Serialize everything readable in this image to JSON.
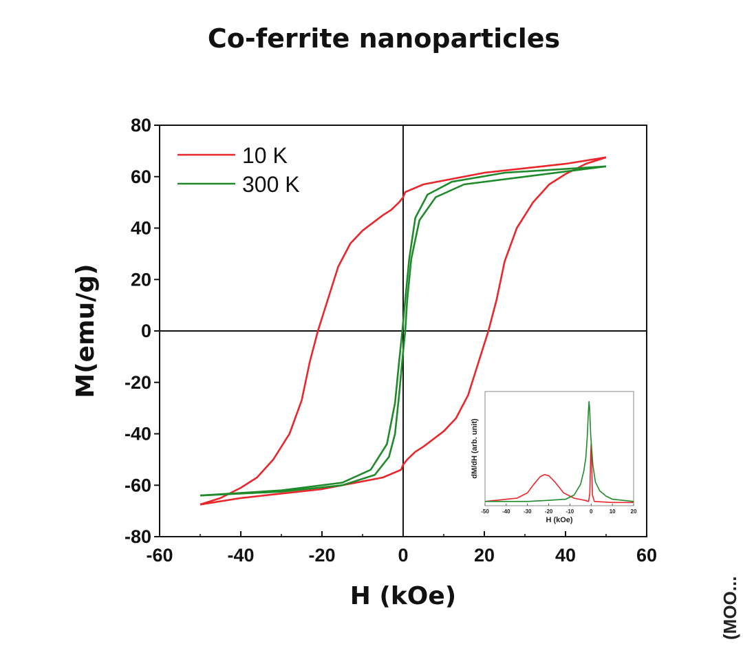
{
  "title": "Co-ferrite nanoparticles",
  "colors": {
    "10K": "#e8262b",
    "300K": "#1f8a2a",
    "axis": "#111111"
  },
  "chart_data": [
    {
      "type": "line",
      "title": "Co-ferrite nanoparticles",
      "xlabel": "H (kOe)",
      "ylabel": "M(emu/g)",
      "xlim": [
        -60,
        60
      ],
      "ylim": [
        -80,
        80
      ],
      "x_ticks": [
        "-60",
        "-40",
        "-20",
        "0",
        "20",
        "40",
        "60"
      ],
      "y_ticks": [
        "80",
        "60",
        "40",
        "20",
        "0",
        "-20",
        "-40",
        "-60",
        "-80"
      ],
      "legend_position": "top-left",
      "series": [
        {
          "name": "10 K",
          "color": "#e8262b",
          "descending": [
            [
              50,
              67.5
            ],
            [
              40,
              65
            ],
            [
              20,
              61.5
            ],
            [
              5,
              57
            ],
            [
              0.5,
              54
            ],
            [
              0,
              52
            ],
            [
              -1,
              50
            ],
            [
              -3,
              47
            ],
            [
              -5,
              45
            ],
            [
              -10,
              39
            ],
            [
              -13,
              34
            ],
            [
              -16,
              25
            ],
            [
              -19,
              10
            ],
            [
              -21,
              0
            ],
            [
              -23,
              -12
            ],
            [
              -25,
              -27
            ],
            [
              -28,
              -40
            ],
            [
              -32,
              -50
            ],
            [
              -36,
              -57
            ],
            [
              -40,
              -61
            ],
            [
              -45,
              -65
            ],
            [
              -50,
              -67.5
            ]
          ],
          "ascending": [
            [
              -50,
              -67.5
            ],
            [
              -40,
              -65
            ],
            [
              -20,
              -61.5
            ],
            [
              -5,
              -57
            ],
            [
              -0.5,
              -54
            ],
            [
              0,
              -52
            ],
            [
              1,
              -50
            ],
            [
              3,
              -47
            ],
            [
              5,
              -45
            ],
            [
              10,
              -39
            ],
            [
              13,
              -34
            ],
            [
              16,
              -25
            ],
            [
              19,
              -10
            ],
            [
              21,
              0
            ],
            [
              23,
              12
            ],
            [
              25,
              27
            ],
            [
              28,
              40
            ],
            [
              32,
              50
            ],
            [
              36,
              57
            ],
            [
              40,
              61
            ],
            [
              45,
              65
            ],
            [
              50,
              67.5
            ]
          ]
        },
        {
          "name": "300 K",
          "color": "#1f8a2a",
          "descending": [
            [
              50,
              64
            ],
            [
              30,
              60
            ],
            [
              15,
              57
            ],
            [
              8,
              52
            ],
            [
              4,
              43
            ],
            [
              2,
              28
            ],
            [
              1,
              12
            ],
            [
              0.5,
              0
            ],
            [
              0,
              -8
            ],
            [
              -1,
              -25
            ],
            [
              -2,
              -40
            ],
            [
              -3.5,
              -49
            ],
            [
              -7,
              -56
            ],
            [
              -15,
              -60
            ],
            [
              -30,
              -62.5
            ],
            [
              -50,
              -64
            ]
          ],
          "ascending": [
            [
              -50,
              -64
            ],
            [
              -30,
              -62
            ],
            [
              -15,
              -59
            ],
            [
              -8,
              -54
            ],
            [
              -4,
              -44
            ],
            [
              -2,
              -28
            ],
            [
              -1,
              -12
            ],
            [
              -0.2,
              0
            ],
            [
              0.5,
              12
            ],
            [
              1.5,
              28
            ],
            [
              3,
              44
            ],
            [
              6,
              53
            ],
            [
              12,
              58
            ],
            [
              25,
              61.5
            ],
            [
              50,
              64
            ]
          ]
        }
      ]
    },
    {
      "type": "line",
      "title": "",
      "xlabel": "H (kOe)",
      "ylabel": "dM/dH (arb. unit)",
      "xlim": [
        -50,
        20
      ],
      "ylim": [
        0,
        1
      ],
      "x_ticks": [
        "-50",
        "-40",
        "-30",
        "-20",
        "-10",
        "0",
        "10",
        "20"
      ],
      "series": [
        {
          "name": "10 K",
          "color": "#e8262b",
          "points": [
            [
              -50,
              0.04
            ],
            [
              -35,
              0.07
            ],
            [
              -30,
              0.12
            ],
            [
              -27,
              0.2
            ],
            [
              -24,
              0.27
            ],
            [
              -22,
              0.29
            ],
            [
              -20,
              0.28
            ],
            [
              -17,
              0.22
            ],
            [
              -13,
              0.12
            ],
            [
              -8,
              0.07
            ],
            [
              -3,
              0.05
            ],
            [
              -1.2,
              0.04
            ],
            [
              -0.6,
              0.12
            ],
            [
              -0.2,
              0.5
            ],
            [
              0,
              0.58
            ],
            [
              0.2,
              0.45
            ],
            [
              0.6,
              0.1
            ],
            [
              1.5,
              0.04
            ],
            [
              10,
              0.03
            ],
            [
              20,
              0.03
            ]
          ]
        },
        {
          "name": "300 K",
          "color": "#1f8a2a",
          "points": [
            [
              -50,
              0.04
            ],
            [
              -30,
              0.04
            ],
            [
              -20,
              0.05
            ],
            [
              -12,
              0.06
            ],
            [
              -8,
              0.1
            ],
            [
              -5,
              0.2
            ],
            [
              -3.5,
              0.32
            ],
            [
              -2.5,
              0.45
            ],
            [
              -1.8,
              0.65
            ],
            [
              -1.3,
              0.88
            ],
            [
              -1,
              0.97
            ],
            [
              -0.7,
              0.9
            ],
            [
              -0.2,
              0.65
            ],
            [
              0.8,
              0.38
            ],
            [
              2,
              0.22
            ],
            [
              4,
              0.14
            ],
            [
              7,
              0.09
            ],
            [
              10,
              0.06
            ],
            [
              20,
              0.04
            ]
          ]
        }
      ]
    }
  ],
  "partial_text": "(MOO..."
}
